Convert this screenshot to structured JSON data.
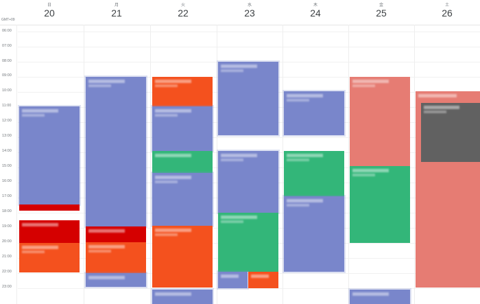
{
  "header": {
    "timezone": "GMT+09",
    "days": [
      {
        "dow": "日",
        "date": "20"
      },
      {
        "dow": "月",
        "date": "21"
      },
      {
        "dow": "火",
        "date": "22"
      },
      {
        "dow": "水",
        "date": "23"
      },
      {
        "dow": "木",
        "date": "24"
      },
      {
        "dow": "金",
        "date": "25"
      },
      {
        "dow": "土",
        "date": "26"
      }
    ]
  },
  "hours": [
    "06:00",
    "07:00",
    "08:00",
    "09:00",
    "10:00",
    "11:00",
    "12:00",
    "13:00",
    "14:00",
    "15:00",
    "16:00",
    "17:00",
    "18:00",
    "19:00",
    "20:00",
    "21:00",
    "22:00",
    "23:00"
  ],
  "colors": {
    "blue": "#7986cb",
    "green": "#33b679",
    "orange": "#f4511e",
    "red": "#d50000",
    "salmon": "#e67c73",
    "gray": "#616161"
  }
}
